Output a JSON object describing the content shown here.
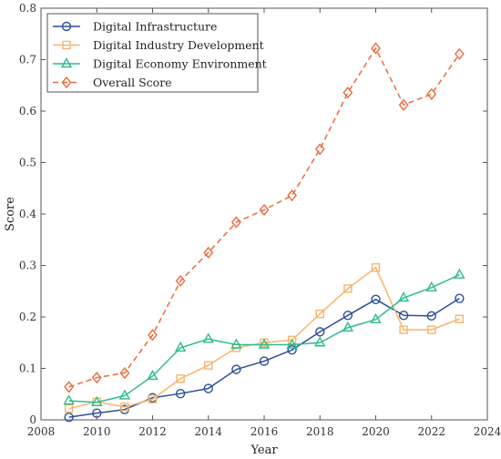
{
  "chart_data": {
    "type": "line",
    "title": "",
    "xlabel": "Year",
    "ylabel": "Score",
    "xlim": [
      2008,
      2024
    ],
    "ylim": [
      0,
      0.8
    ],
    "xticks": [
      2008,
      2010,
      2012,
      2014,
      2016,
      2018,
      2020,
      2022,
      2024
    ],
    "xtick_labels": [
      "2008",
      "2010",
      "2012",
      "2014",
      "2016",
      "2018",
      "2020",
      "2022",
      "2024"
    ],
    "yticks": [
      0,
      0.1,
      0.2,
      0.3,
      0.4,
      0.5,
      0.6,
      0.7,
      0.8
    ],
    "ytick_labels": [
      "0",
      "0.1",
      "0.2",
      "0.3",
      "0.4",
      "0.5",
      "0.6",
      "0.7",
      "0.8"
    ],
    "grid": false,
    "legend_position": "top-left",
    "x": [
      2009,
      2010,
      2011,
      2012,
      2013,
      2014,
      2015,
      2016,
      2017,
      2018,
      2019,
      2020,
      2021,
      2022,
      2023
    ],
    "series": [
      {
        "name": "Digital Infrastructure",
        "color": "#2b4f9a",
        "marker": "circle",
        "line_style": "solid",
        "values": [
          0.005,
          0.013,
          0.02,
          0.043,
          0.051,
          0.061,
          0.098,
          0.114,
          0.136,
          0.171,
          0.203,
          0.234,
          0.203,
          0.202,
          0.236
        ]
      },
      {
        "name": "Digital Industry Development",
        "color": "#f6b56b",
        "marker": "square",
        "line_style": "solid",
        "values": [
          0.022,
          0.035,
          0.025,
          0.04,
          0.08,
          0.106,
          0.14,
          0.15,
          0.155,
          0.206,
          0.255,
          0.296,
          0.175,
          0.175,
          0.196
        ]
      },
      {
        "name": "Digital Economy Environment",
        "color": "#2fbb8f",
        "marker": "triangle",
        "line_style": "solid",
        "values": [
          0.037,
          0.034,
          0.047,
          0.085,
          0.14,
          0.157,
          0.146,
          0.146,
          0.146,
          0.15,
          0.179,
          0.195,
          0.237,
          0.257,
          0.282
        ]
      },
      {
        "name": "Overall Score",
        "color": "#ec6a3c",
        "marker": "diamond",
        "line_style": "dashed",
        "values": [
          0.064,
          0.082,
          0.091,
          0.165,
          0.27,
          0.325,
          0.384,
          0.408,
          0.436,
          0.526,
          0.636,
          0.722,
          0.612,
          0.633,
          0.711
        ]
      }
    ]
  }
}
